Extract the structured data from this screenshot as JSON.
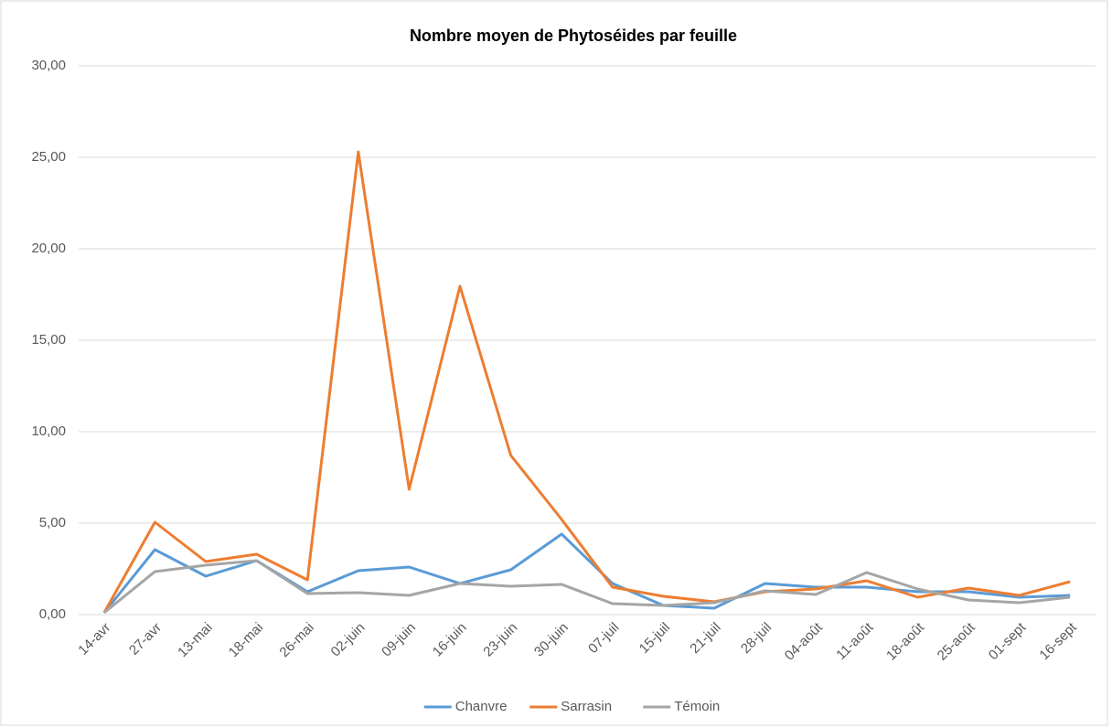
{
  "chart_data": {
    "type": "line",
    "title": "Nombre moyen de Phytoséides par feuille",
    "categories": [
      "14-avr",
      "27-avr",
      "13-mai",
      "18-mai",
      "26-mai",
      "02-juin",
      "09-juin",
      "16-juin",
      "23-juin",
      "30-juin",
      "07-juil",
      "15-juil",
      "21-juil",
      "28-juil",
      "04-août",
      "11-août",
      "18-août",
      "25-août",
      "01-sept",
      "16-sept"
    ],
    "series": [
      {
        "name": "Chanvre",
        "color": "#5b9bd5",
        "values": [
          0.1,
          3.55,
          2.1,
          2.95,
          1.25,
          2.4,
          2.6,
          1.7,
          2.45,
          4.4,
          1.7,
          0.5,
          0.35,
          1.7,
          1.5,
          1.5,
          1.25,
          1.25,
          0.95,
          1.05
        ]
      },
      {
        "name": "Sarrasin",
        "color": "#ed7d31",
        "values": [
          0.1,
          5.05,
          2.9,
          3.3,
          1.9,
          25.3,
          6.85,
          17.95,
          8.7,
          5.2,
          1.5,
          1.0,
          0.7,
          1.25,
          1.4,
          1.85,
          0.95,
          1.45,
          1.05,
          1.8
        ]
      },
      {
        "name": "Témoin",
        "color": "#a5a5a5",
        "values": [
          0.1,
          2.35,
          2.7,
          2.95,
          1.15,
          1.2,
          1.05,
          1.7,
          1.55,
          1.65,
          0.6,
          0.5,
          0.65,
          1.3,
          1.1,
          2.3,
          1.4,
          0.8,
          0.65,
          0.95
        ]
      }
    ],
    "ylim": [
      0,
      30
    ],
    "yticks": [
      {
        "value": 0,
        "label": "0,00"
      },
      {
        "value": 5,
        "label": "5,00"
      },
      {
        "value": 10,
        "label": "10,00"
      },
      {
        "value": 15,
        "label": "15,00"
      },
      {
        "value": 20,
        "label": "20,00"
      },
      {
        "value": 25,
        "label": "25,00"
      },
      {
        "value": 30,
        "label": "30,00"
      }
    ],
    "grid": true,
    "legend": "bottom"
  }
}
